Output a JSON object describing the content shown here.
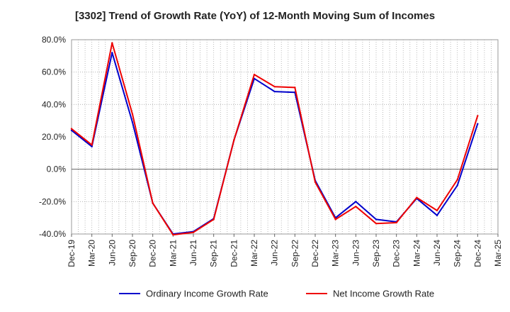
{
  "chart_data": {
    "type": "line",
    "title": "[3302]  Trend of Growth Rate (YoY) of 12-Month Moving Sum of Incomes",
    "xlabel": "",
    "ylabel": "",
    "ylim": [
      -40,
      80
    ],
    "y_ticks": [
      "80.0%",
      "60.0%",
      "40.0%",
      "20.0%",
      "0.0%",
      "-20.0%",
      "-40.0%"
    ],
    "x": [
      "Dec-19",
      "Jan-20",
      "Feb-20",
      "Mar-20",
      "Apr-20",
      "May-20",
      "Jun-20",
      "Jul-20",
      "Aug-20",
      "Sep-20",
      "Oct-20",
      "Nov-20",
      "Dec-20",
      "Jan-21",
      "Feb-21",
      "Mar-21",
      "Apr-21",
      "May-21",
      "Jun-21",
      "Jul-21",
      "Aug-21",
      "Sep-21",
      "Oct-21",
      "Nov-21",
      "Dec-21",
      "Jan-22",
      "Feb-22",
      "Mar-22",
      "Apr-22",
      "May-22",
      "Jun-22",
      "Jul-22",
      "Aug-22",
      "Sep-22",
      "Oct-22",
      "Nov-22",
      "Dec-22",
      "Jan-23",
      "Feb-23",
      "Mar-23",
      "Apr-23",
      "May-23",
      "Jun-23",
      "Jul-23",
      "Aug-23",
      "Sep-23",
      "Oct-23",
      "Nov-23",
      "Dec-23",
      "Jan-24",
      "Feb-24",
      "Mar-24",
      "Apr-24",
      "May-24",
      "Jun-24",
      "Jul-24",
      "Aug-24",
      "Sep-24",
      "Oct-24",
      "Nov-24",
      "Dec-24",
      "Jan-25",
      "Feb-25",
      "Mar-25"
    ],
    "x_tick_labels": [
      "Dec-19",
      "Mar-20",
      "Jun-20",
      "Sep-20",
      "Dec-20",
      "Mar-21",
      "Jun-21",
      "Sep-21",
      "Dec-21",
      "Mar-22",
      "Jun-22",
      "Sep-22",
      "Dec-22",
      "Mar-23",
      "Jun-23",
      "Sep-23",
      "Dec-23",
      "Mar-24",
      "Jun-24",
      "Sep-24",
      "Dec-24",
      "Mar-25"
    ],
    "series": [
      {
        "name": "Ordinary Income Growth Rate",
        "color": "#0000cc",
        "x": [
          "Dec-19",
          "Mar-20",
          "Jun-20",
          "Sep-20",
          "Dec-20",
          "Mar-21",
          "Jun-21",
          "Sep-21",
          "Dec-21",
          "Mar-22",
          "Jun-22",
          "Sep-22",
          "Dec-22",
          "Mar-23",
          "Jun-23",
          "Sep-23",
          "Dec-23",
          "Mar-24",
          "Jun-24",
          "Sep-24",
          "Dec-24"
        ],
        "values": [
          24,
          14,
          72,
          29,
          -21,
          -40,
          -38.5,
          -30.5,
          18,
          56,
          48,
          47.5,
          -7,
          -30,
          -20,
          -31,
          -32.5,
          -18,
          -28.5,
          -10,
          28
        ]
      },
      {
        "name": "Net Income Growth Rate",
        "color": "#ee0000",
        "x": [
          "Dec-19",
          "Mar-20",
          "Jun-20",
          "Sep-20",
          "Dec-20",
          "Mar-21",
          "Jun-21",
          "Sep-21",
          "Dec-21",
          "Mar-22",
          "Jun-22",
          "Sep-22",
          "Dec-22",
          "Mar-23",
          "Jun-23",
          "Sep-23",
          "Dec-23",
          "Mar-24",
          "Jun-24",
          "Sep-24",
          "Dec-24"
        ],
        "values": [
          25,
          15,
          78,
          34,
          -21,
          -40.5,
          -39,
          -31,
          18,
          58.5,
          51,
          50.5,
          -8,
          -31,
          -23,
          -33.5,
          -33,
          -17.5,
          -25.5,
          -6.5,
          33
        ]
      }
    ],
    "grid": true,
    "legend_position": "bottom"
  }
}
